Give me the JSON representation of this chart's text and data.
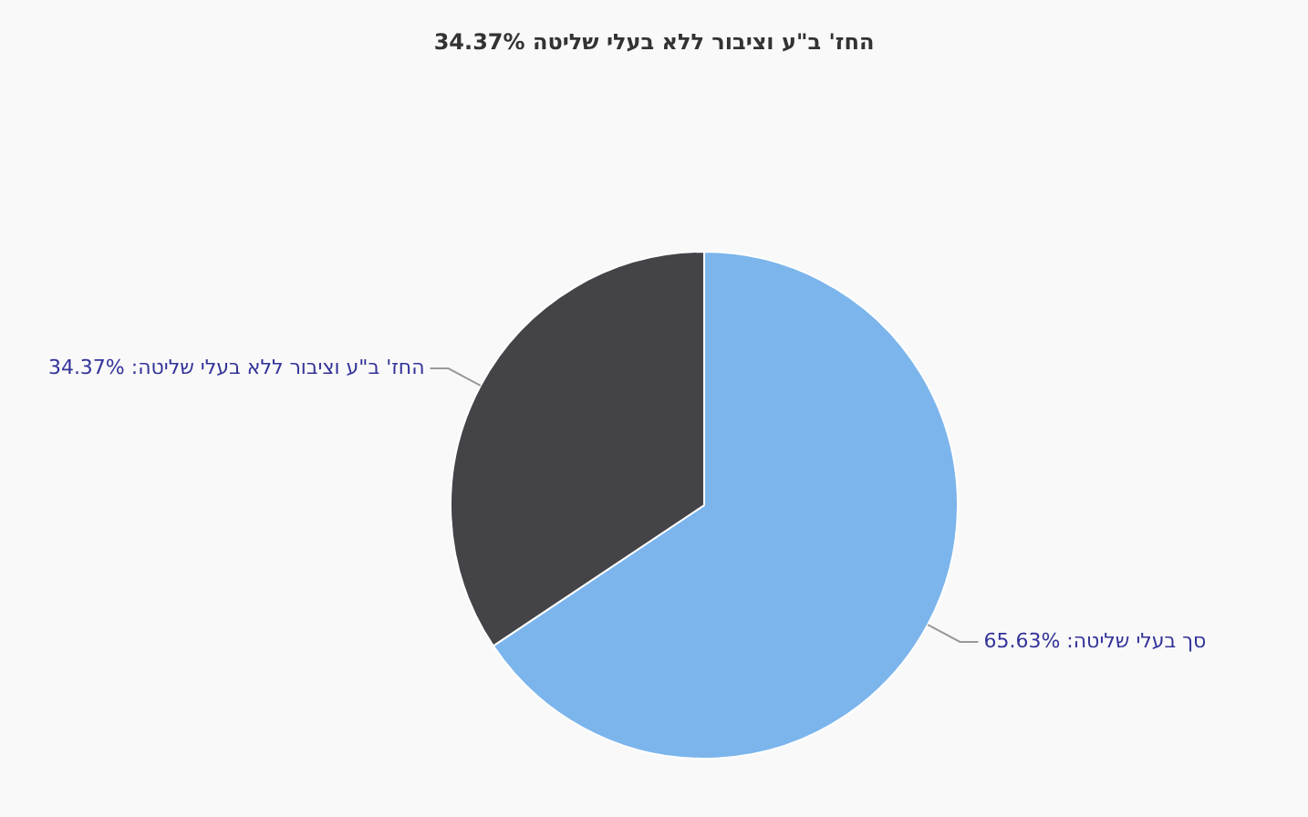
{
  "chart_data": {
    "type": "pie",
    "title": "החז' ב\"ע וציבור ללא בעלי שליטה 34.37%",
    "categories": [
      "סך בעלי שליטה",
      "החז' ב\"ע וציבור ללא בעלי שליטה"
    ],
    "values": [
      65.63,
      34.37
    ],
    "colors": [
      "#7cb5ec",
      "#434348"
    ],
    "value_labels": [
      "65.63%",
      "34.37%"
    ],
    "legend": false
  }
}
